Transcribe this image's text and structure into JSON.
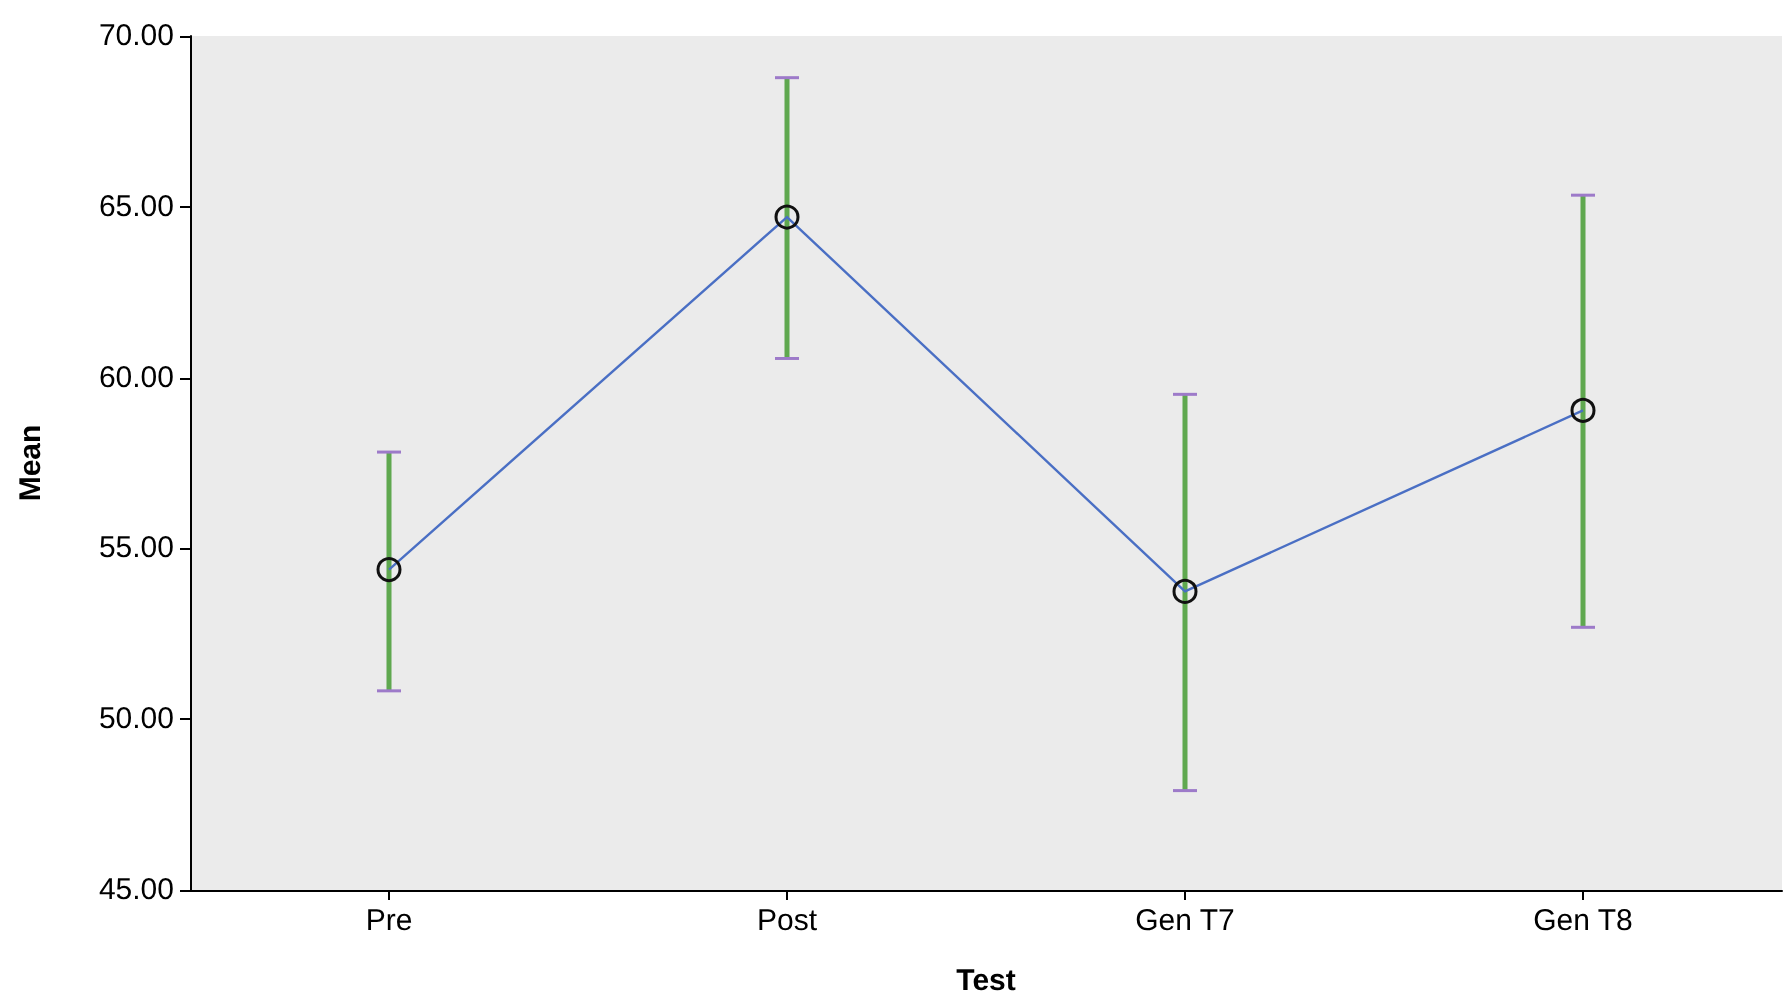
{
  "chart_data": {
    "type": "line",
    "xlabel": "Test",
    "ylabel": "Mean",
    "categories": [
      "Pre",
      "Post",
      "Gen T7",
      "Gen T8"
    ],
    "series": [
      {
        "color": "#4a6fc4",
        "values": [
          54.38,
          64.7,
          53.74,
          59.04
        ],
        "errors": [
          [
            50.83,
            57.82
          ],
          [
            60.56,
            68.78
          ],
          [
            47.91,
            59.51
          ],
          [
            52.69,
            65.34
          ]
        ]
      }
    ],
    "ylim": [
      45,
      70
    ],
    "yticks": [
      {
        "value": 45,
        "label": "45.00"
      },
      {
        "value": 50,
        "label": "50.00"
      },
      {
        "value": 55,
        "label": "55.00"
      },
      {
        "value": 60,
        "label": "60.00"
      },
      {
        "value": 65,
        "label": "65.00"
      },
      {
        "value": 70,
        "label": "70.00"
      }
    ],
    "marker": "circle",
    "line_style": "solid",
    "grid": false
  }
}
